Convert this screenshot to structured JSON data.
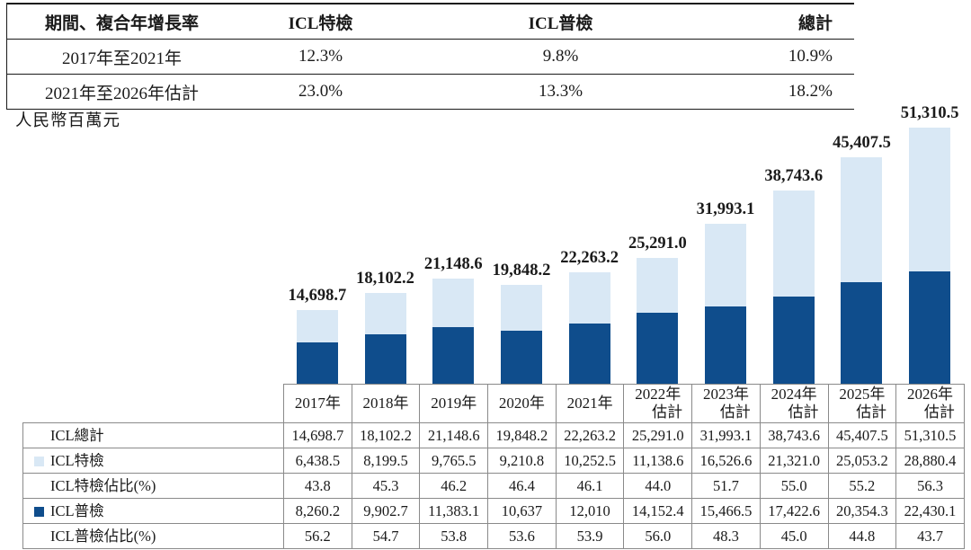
{
  "colors": {
    "special_light_blue": "#d9e8f5",
    "general_dark_blue": "#0f4d8c",
    "grid_border_gray": "#8a8a8a",
    "text": "#1a1a1a"
  },
  "top_table": {
    "header": [
      "期間、複合年增長率",
      "ICL特檢",
      "ICL普檢",
      "總計"
    ],
    "rows": [
      {
        "period": "2017年至2021年",
        "special": "12.3%",
        "general": "9.8%",
        "total": "10.9%"
      },
      {
        "period": "2021年至2026年估計",
        "special": "23.0%",
        "general": "13.3%",
        "total": "18.2%"
      }
    ]
  },
  "chart_data": {
    "type": "bar",
    "subtype": "stacked",
    "unit_label": "人民幣百萬元",
    "categories": [
      "2017年",
      "2018年",
      "2019年",
      "2020年",
      "2021年",
      "2022年估計",
      "2023年估計",
      "2024年估計",
      "2025年估計",
      "2026年估計"
    ],
    "series": [
      {
        "name": "ICL特檢",
        "color": "#d9e8f5",
        "values": [
          6438.5,
          8199.5,
          9765.5,
          9210.8,
          10252.5,
          11138.6,
          16526.6,
          21321.0,
          25053.2,
          28880.4
        ]
      },
      {
        "name": "ICL普檢",
        "color": "#0f4d8c",
        "values": [
          8260.2,
          9902.7,
          11383.1,
          10637,
          12010,
          14152.4,
          15466.5,
          17422.6,
          20354.3,
          22430.1
        ]
      }
    ],
    "totals": [
      14698.7,
      18102.2,
      21148.6,
      19848.2,
      22263.2,
      25291.0,
      31993.1,
      38743.6,
      45407.5,
      51310.5
    ],
    "total_labels": [
      "14,698.7",
      "18,102.2",
      "21,148.6",
      "19,848.2",
      "22,263.2",
      "25,291.0",
      "31,993.1",
      "38,743.6",
      "45,407.5",
      "51,310.5"
    ],
    "ylim": [
      0,
      51310.5
    ],
    "legend_position": "in-table-left"
  },
  "bottom_table": {
    "rows": [
      {
        "label": "ICL總計",
        "swatch": null,
        "values": [
          "14,698.7",
          "18,102.2",
          "21,148.6",
          "19,848.2",
          "22,263.2",
          "25,291.0",
          "31,993.1",
          "38,743.6",
          "45,407.5",
          "51,310.5"
        ]
      },
      {
        "label": "ICL特檢",
        "swatch": "light",
        "values": [
          "6,438.5",
          "8,199.5",
          "9,765.5",
          "9,210.8",
          "10,252.5",
          "11,138.6",
          "16,526.6",
          "21,321.0",
          "25,053.2",
          "28,880.4"
        ]
      },
      {
        "label": "ICL特檢佔比(%)",
        "swatch": null,
        "values": [
          "43.8",
          "45.3",
          "46.2",
          "46.4",
          "46.1",
          "44.0",
          "51.7",
          "55.0",
          "55.2",
          "56.3"
        ]
      },
      {
        "label": "ICL普檢",
        "swatch": "dark",
        "values": [
          "8,260.2",
          "9,902.7",
          "11,383.1",
          "10,637",
          "12,010",
          "14,152.4",
          "15,466.5",
          "17,422.6",
          "20,354.3",
          "22,430.1"
        ]
      },
      {
        "label": "ICL普檢佔比(%)",
        "swatch": null,
        "values": [
          "56.2",
          "54.7",
          "53.8",
          "53.6",
          "53.9",
          "56.0",
          "48.3",
          "45.0",
          "44.8",
          "43.7"
        ]
      }
    ],
    "estimate_suffix": "估計"
  }
}
